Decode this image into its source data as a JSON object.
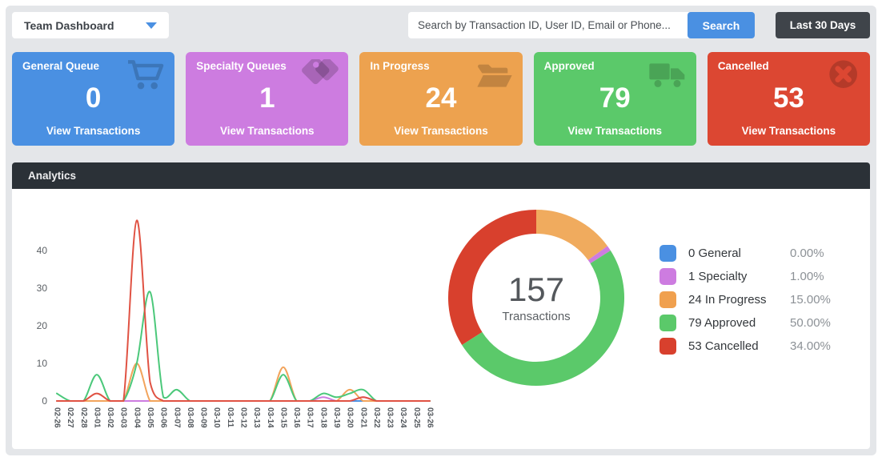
{
  "header": {
    "dashboard_selector": {
      "label": "Team Dashboard"
    },
    "search": {
      "placeholder": "Search by Transaction ID, User ID, Email or Phone...",
      "button_label": "Search"
    },
    "date_range_label": "Last 30 Days"
  },
  "cards": [
    {
      "title": "General Queue",
      "value": "0",
      "link_label": "View Transactions",
      "color": "#4a90e2",
      "icon": "cart-icon"
    },
    {
      "title": "Specialty Queues",
      "value": "1",
      "link_label": "View Transactions",
      "color": "#cd7ce0",
      "icon": "tags-icon"
    },
    {
      "title": "In Progress",
      "value": "24",
      "link_label": "View Transactions",
      "color": "#eda24f",
      "icon": "folder-open-icon"
    },
    {
      "title": "Approved",
      "value": "79",
      "link_label": "View Transactions",
      "color": "#5bc96a",
      "icon": "truck-icon"
    },
    {
      "title": "Cancelled",
      "value": "53",
      "link_label": "View Transactions",
      "color": "#dc4732",
      "icon": "circle-x-icon"
    }
  ],
  "analytics": {
    "title": "Analytics"
  },
  "chart_data": [
    {
      "type": "line",
      "title": "Transactions per day",
      "x": [
        "02-26",
        "02-27",
        "02-28",
        "03-01",
        "03-02",
        "03-03",
        "03-04",
        "03-05",
        "03-06",
        "03-07",
        "03-08",
        "03-09",
        "03-10",
        "03-11",
        "03-12",
        "03-13",
        "03-14",
        "03-15",
        "03-16",
        "03-17",
        "03-18",
        "03-19",
        "03-20",
        "03-21",
        "03-22",
        "03-23",
        "03-24",
        "03-25",
        "03-26"
      ],
      "series": [
        {
          "name": "General",
          "color": "#4a90e2",
          "values": [
            0,
            0,
            0,
            0,
            0,
            0,
            0,
            0,
            0,
            0,
            0,
            0,
            0,
            0,
            0,
            0,
            0,
            0,
            0,
            0,
            0,
            0,
            0,
            0,
            0,
            0,
            0,
            0,
            0
          ]
        },
        {
          "name": "Specialty",
          "color": "#cd7ce0",
          "values": [
            0,
            0,
            0,
            0,
            0,
            0,
            0,
            0,
            0,
            0,
            0,
            0,
            0,
            0,
            0,
            0,
            0,
            0,
            0,
            0,
            1,
            0,
            0,
            1,
            0,
            0,
            0,
            0,
            0
          ]
        },
        {
          "name": "In Progress",
          "color": "#f2a45c",
          "values": [
            0,
            0,
            0,
            0,
            0,
            0,
            10,
            0,
            0,
            0,
            0,
            0,
            0,
            0,
            0,
            0,
            0,
            9,
            0,
            0,
            0,
            0,
            3,
            0,
            0,
            0,
            0,
            0,
            0
          ]
        },
        {
          "name": "Approved",
          "color": "#4bc87a",
          "values": [
            2,
            0,
            0,
            7,
            0,
            0,
            10,
            29,
            1,
            3,
            0,
            0,
            0,
            0,
            0,
            0,
            0,
            7,
            0,
            0,
            2,
            1,
            2,
            3,
            0,
            0,
            0,
            0,
            0
          ]
        },
        {
          "name": "Cancelled",
          "color": "#e05243",
          "values": [
            0,
            0,
            0,
            2,
            0,
            0,
            48,
            5,
            0,
            0,
            0,
            0,
            0,
            0,
            0,
            0,
            0,
            0,
            0,
            0,
            0,
            0,
            0,
            1,
            0,
            0,
            0,
            0,
            0
          ]
        }
      ],
      "ylim": [
        0,
        50
      ],
      "yticks": [
        0,
        10,
        20,
        30,
        40
      ],
      "grid": false,
      "legend_position": "none"
    },
    {
      "type": "pie",
      "donut": true,
      "start": "top",
      "center_value": "157",
      "center_label": "Transactions",
      "segments": [
        {
          "name": "In Progress",
          "percent": 15,
          "color": "#f0ab5e"
        },
        {
          "name": "Specialty",
          "percent": 1,
          "color": "#cd7ce0"
        },
        {
          "name": "Approved",
          "percent": 50,
          "color": "#5bc96a"
        },
        {
          "name": "Cancelled",
          "percent": 34,
          "color": "#d8402d"
        }
      ],
      "legend_position": "right",
      "legend": [
        {
          "label": "0 General",
          "percent_label": "0.00%",
          "color": "#4a90e2"
        },
        {
          "label": "1 Specialty",
          "percent_label": "1.00%",
          "color": "#cd7ce0"
        },
        {
          "label": "24 In Progress",
          "percent_label": "15.00%",
          "color": "#f0a04e"
        },
        {
          "label": "79 Approved",
          "percent_label": "50.00%",
          "color": "#5bc96a"
        },
        {
          "label": "53 Cancelled",
          "percent_label": "34.00%",
          "color": "#d8402d"
        }
      ]
    }
  ]
}
